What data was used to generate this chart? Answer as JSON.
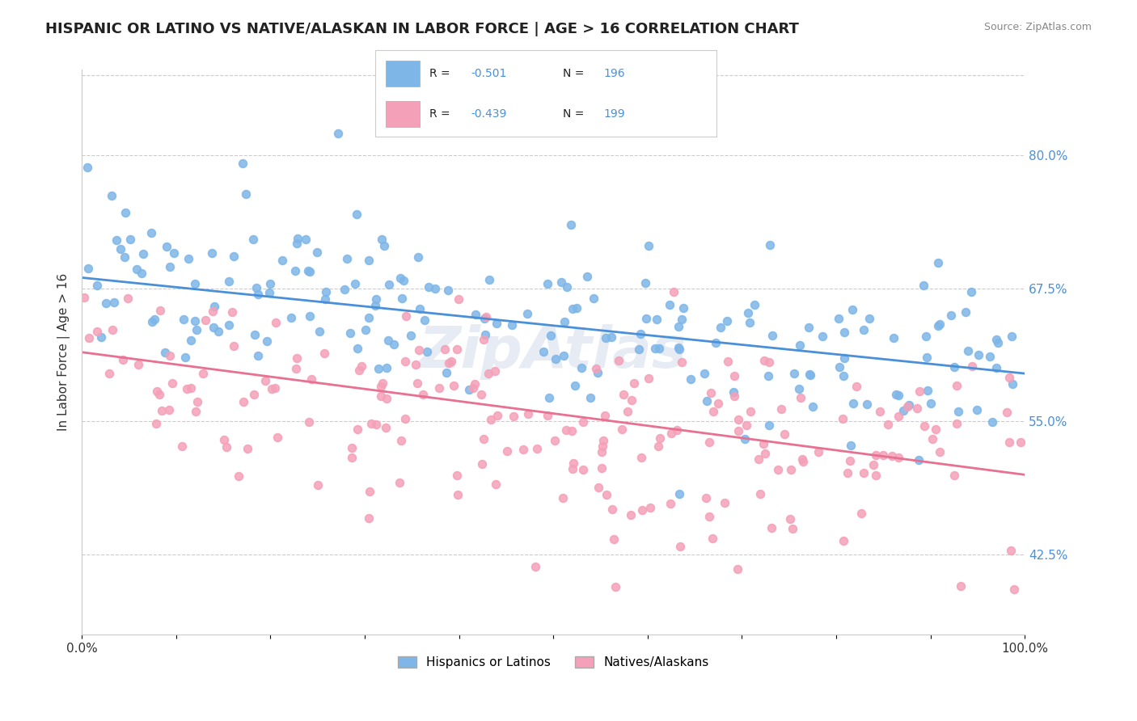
{
  "title": "HISPANIC OR LATINO VS NATIVE/ALASKAN IN LABOR FORCE | AGE > 16 CORRELATION CHART",
  "source": "Source: ZipAtlas.com",
  "xlabel": "",
  "ylabel": "In Labor Force | Age > 16",
  "r_blue": -0.501,
  "n_blue": 196,
  "r_pink": -0.439,
  "n_pink": 199,
  "legend_blue": "Hispanics or Latinos",
  "legend_pink": "Natives/Alaskans",
  "blue_color": "#7EB6E8",
  "pink_color": "#F4A0B8",
  "blue_line_color": "#4A90D9",
  "pink_line_color": "#E87090",
  "right_yticks": [
    0.425,
    0.55,
    0.675,
    0.8
  ],
  "right_yticklabels": [
    "42.5%",
    "55.0%",
    "67.5%",
    "80.0%"
  ],
  "xlim": [
    0.0,
    1.0
  ],
  "ylim": [
    0.35,
    0.88
  ],
  "seed_blue": 42,
  "seed_pink": 123,
  "watermark": "ZipAtlas",
  "bg_color": "#FFFFFF",
  "grid_color": "#CCCCCC"
}
